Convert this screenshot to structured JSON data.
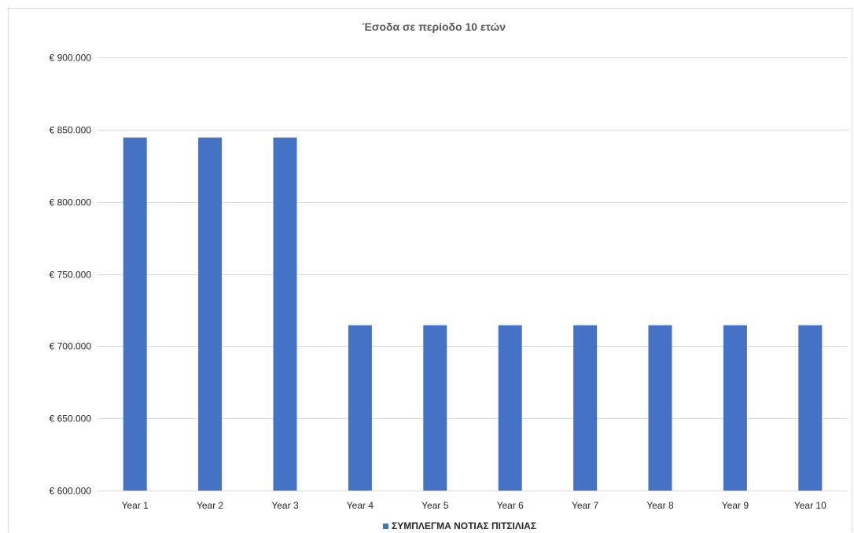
{
  "chart_data": {
    "type": "bar",
    "title": "Έσοδα σε περίοδο 10 ετών",
    "xlabel": "",
    "ylabel": "",
    "categories": [
      "Year 1",
      "Year 2",
      "Year 3",
      "Year 4",
      "Year 5",
      "Year 6",
      "Year 7",
      "Year 8",
      "Year 9",
      "Year 10"
    ],
    "series": [
      {
        "name": "ΣΥΜΠΛΕΓΜΑ ΝΟΤΙΑΣ ΠΙΤΣΙΛΙΑΣ",
        "color": "#4472c4",
        "values": [
          844500,
          844500,
          844500,
          714500,
          714500,
          714500,
          714500,
          714500,
          714500,
          714500
        ]
      }
    ],
    "ylim": [
      600000,
      900000
    ],
    "yticks": [
      600000,
      650000,
      700000,
      750000,
      800000,
      850000,
      900000
    ],
    "ytick_labels": [
      "€ 600.000",
      "€ 650.000",
      "€ 700.000",
      "€ 750.000",
      "€ 800.000",
      "€ 850.000",
      "€ 900.000"
    ],
    "grid": true,
    "legend_position": "bottom"
  }
}
